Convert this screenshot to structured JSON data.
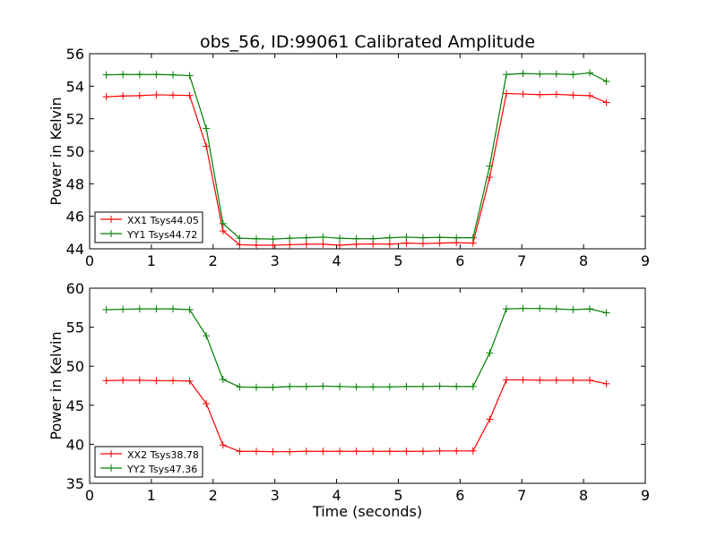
{
  "chart_data": [
    {
      "type": "line",
      "title": "obs_56, ID:99061 Calibrated Amplitude",
      "xlabel": "",
      "ylabel": "Power in Kelvin",
      "xlim": [
        0,
        9
      ],
      "ylim": [
        44,
        56
      ],
      "xticks": [
        "0",
        "1",
        "2",
        "3",
        "4",
        "5",
        "6",
        "7",
        "8",
        "9"
      ],
      "yticks": [
        "44",
        "46",
        "48",
        "50",
        "52",
        "54",
        "56"
      ],
      "grid": false,
      "legend_position": "lower-left",
      "x": [
        0.27,
        0.54,
        0.81,
        1.08,
        1.35,
        1.62,
        1.89,
        2.16,
        2.43,
        2.7,
        2.97,
        3.24,
        3.51,
        3.78,
        4.05,
        4.32,
        4.59,
        4.86,
        5.13,
        5.4,
        5.67,
        5.94,
        6.21,
        6.48,
        6.75,
        7.02,
        7.29,
        7.56,
        7.83,
        8.1,
        8.37
      ],
      "series": [
        {
          "name": "XX1 Tsys44.05",
          "color": "#ff0000",
          "values": [
            53.35,
            53.4,
            53.42,
            53.47,
            53.45,
            53.43,
            50.3,
            45.1,
            44.25,
            44.22,
            44.22,
            44.25,
            44.28,
            44.28,
            44.22,
            44.28,
            44.3,
            44.28,
            44.35,
            44.32,
            44.35,
            44.38,
            44.35,
            48.4,
            53.55,
            53.52,
            53.48,
            53.5,
            53.45,
            53.42,
            53.0
          ]
        },
        {
          "name": "YY1 Tsys44.72",
          "color": "#008000",
          "values": [
            54.7,
            54.72,
            54.72,
            54.72,
            54.7,
            54.65,
            51.4,
            45.55,
            44.65,
            44.62,
            44.6,
            44.65,
            44.68,
            44.72,
            44.65,
            44.62,
            44.62,
            44.68,
            44.72,
            44.68,
            44.7,
            44.68,
            44.68,
            49.1,
            54.72,
            54.78,
            54.75,
            54.75,
            54.72,
            54.82,
            54.3
          ]
        }
      ]
    },
    {
      "type": "line",
      "title": "",
      "xlabel": "Time (seconds)",
      "ylabel": "Power in Kelvin",
      "xlim": [
        0,
        9
      ],
      "ylim": [
        35,
        60
      ],
      "xticks": [
        "0",
        "1",
        "2",
        "3",
        "4",
        "5",
        "6",
        "7",
        "8",
        "9"
      ],
      "yticks": [
        "35",
        "40",
        "45",
        "50",
        "55",
        "60"
      ],
      "grid": false,
      "legend_position": "lower-left",
      "x": [
        0.27,
        0.54,
        0.81,
        1.08,
        1.35,
        1.62,
        1.89,
        2.16,
        2.43,
        2.7,
        2.97,
        3.24,
        3.51,
        3.78,
        4.05,
        4.32,
        4.59,
        4.86,
        5.13,
        5.4,
        5.67,
        5.94,
        6.21,
        6.48,
        6.75,
        7.02,
        7.29,
        7.56,
        7.83,
        8.1,
        8.37
      ],
      "series": [
        {
          "name": "XX2 Tsys38.78",
          "color": "#ff0000",
          "values": [
            48.15,
            48.2,
            48.2,
            48.15,
            48.15,
            48.1,
            45.2,
            39.9,
            39.1,
            39.1,
            39.05,
            39.05,
            39.1,
            39.1,
            39.1,
            39.1,
            39.1,
            39.1,
            39.1,
            39.1,
            39.15,
            39.15,
            39.15,
            43.2,
            48.25,
            48.25,
            48.2,
            48.2,
            48.2,
            48.2,
            47.75
          ]
        },
        {
          "name": "YY2 Tsys47.36",
          "color": "#008000",
          "values": [
            57.25,
            57.3,
            57.35,
            57.35,
            57.35,
            57.25,
            53.9,
            48.3,
            47.35,
            47.3,
            47.3,
            47.4,
            47.4,
            47.45,
            47.4,
            47.35,
            47.35,
            47.35,
            47.4,
            47.4,
            47.45,
            47.4,
            47.4,
            51.7,
            57.35,
            57.4,
            57.4,
            57.35,
            57.25,
            57.35,
            56.85
          ]
        }
      ]
    }
  ]
}
